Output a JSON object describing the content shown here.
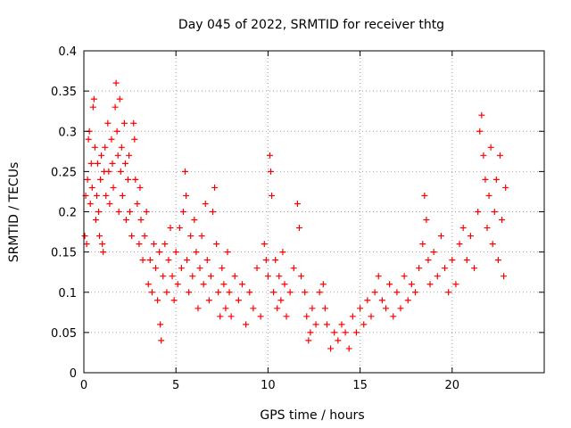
{
  "chart_data": {
    "type": "scatter",
    "title": "Day 045 of 2022, SRMTID for receiver thtg",
    "xlabel": "GPS time / hours",
    "ylabel": "SRMTID / TECUs",
    "xlim": [
      0,
      25
    ],
    "ylim": [
      0,
      0.4
    ],
    "xticks": [
      0,
      5,
      10,
      15,
      20
    ],
    "yticks": [
      0,
      0.05,
      0.1,
      0.15,
      0.2,
      0.25,
      0.3,
      0.35,
      0.4
    ],
    "xtick_labels": [
      "0",
      "5",
      "10",
      "15",
      "20"
    ],
    "ytick_labels": [
      "0",
      "0.05",
      "0.1",
      "0.15",
      "0.2",
      "0.25",
      "0.3",
      "0.35",
      "0.4"
    ],
    "grid": true,
    "marker": "+",
    "colors": {
      "series": "#ff0000",
      "grid": "#a0a0a0",
      "axes": "#000000"
    },
    "series": [
      {
        "points": [
          [
            0.05,
            0.17
          ],
          [
            0.1,
            0.22
          ],
          [
            0.15,
            0.16
          ],
          [
            0.2,
            0.24
          ],
          [
            0.25,
            0.29
          ],
          [
            0.3,
            0.3
          ],
          [
            0.35,
            0.21
          ],
          [
            0.4,
            0.26
          ],
          [
            0.45,
            0.23
          ],
          [
            0.5,
            0.33
          ],
          [
            0.55,
            0.34
          ],
          [
            0.6,
            0.28
          ],
          [
            0.65,
            0.19
          ],
          [
            0.7,
            0.22
          ],
          [
            0.75,
            0.26
          ],
          [
            0.8,
            0.2
          ],
          [
            0.85,
            0.17
          ],
          [
            0.9,
            0.24
          ],
          [
            0.95,
            0.27
          ],
          [
            1.0,
            0.16
          ],
          [
            1.05,
            0.15
          ],
          [
            1.1,
            0.25
          ],
          [
            1.15,
            0.28
          ],
          [
            1.2,
            0.22
          ],
          [
            1.3,
            0.31
          ],
          [
            1.35,
            0.25
          ],
          [
            1.4,
            0.21
          ],
          [
            1.5,
            0.29
          ],
          [
            1.55,
            0.26
          ],
          [
            1.6,
            0.23
          ],
          [
            1.7,
            0.33
          ],
          [
            1.75,
            0.36
          ],
          [
            1.8,
            0.3
          ],
          [
            1.85,
            0.27
          ],
          [
            1.9,
            0.2
          ],
          [
            1.95,
            0.34
          ],
          [
            2.0,
            0.25
          ],
          [
            2.05,
            0.28
          ],
          [
            2.1,
            0.22
          ],
          [
            2.2,
            0.31
          ],
          [
            2.25,
            0.26
          ],
          [
            2.3,
            0.19
          ],
          [
            2.4,
            0.24
          ],
          [
            2.45,
            0.27
          ],
          [
            2.5,
            0.2
          ],
          [
            2.6,
            0.17
          ],
          [
            2.7,
            0.31
          ],
          [
            2.75,
            0.29
          ],
          [
            2.8,
            0.24
          ],
          [
            2.9,
            0.21
          ],
          [
            3.0,
            0.16
          ],
          [
            3.05,
            0.23
          ],
          [
            3.1,
            0.19
          ],
          [
            3.2,
            0.14
          ],
          [
            3.3,
            0.17
          ],
          [
            3.4,
            0.2
          ],
          [
            3.5,
            0.11
          ],
          [
            3.6,
            0.14
          ],
          [
            3.7,
            0.1
          ],
          [
            3.8,
            0.16
          ],
          [
            3.9,
            0.13
          ],
          [
            4.0,
            0.09
          ],
          [
            4.1,
            0.15
          ],
          [
            4.15,
            0.06
          ],
          [
            4.2,
            0.04
          ],
          [
            4.3,
            0.12
          ],
          [
            4.4,
            0.16
          ],
          [
            4.5,
            0.1
          ],
          [
            4.6,
            0.14
          ],
          [
            4.7,
            0.18
          ],
          [
            4.8,
            0.12
          ],
          [
            4.9,
            0.09
          ],
          [
            5.0,
            0.15
          ],
          [
            5.1,
            0.11
          ],
          [
            5.2,
            0.18
          ],
          [
            5.3,
            0.13
          ],
          [
            5.4,
            0.2
          ],
          [
            5.5,
            0.25
          ],
          [
            5.55,
            0.22
          ],
          [
            5.6,
            0.14
          ],
          [
            5.7,
            0.1
          ],
          [
            5.8,
            0.17
          ],
          [
            5.9,
            0.12
          ],
          [
            6.0,
            0.19
          ],
          [
            6.1,
            0.15
          ],
          [
            6.2,
            0.08
          ],
          [
            6.3,
            0.13
          ],
          [
            6.4,
            0.17
          ],
          [
            6.5,
            0.11
          ],
          [
            6.6,
            0.21
          ],
          [
            6.7,
            0.14
          ],
          [
            6.8,
            0.09
          ],
          [
            6.9,
            0.12
          ],
          [
            7.0,
            0.2
          ],
          [
            7.1,
            0.23
          ],
          [
            7.2,
            0.16
          ],
          [
            7.3,
            0.1
          ],
          [
            7.4,
            0.07
          ],
          [
            7.5,
            0.13
          ],
          [
            7.6,
            0.11
          ],
          [
            7.7,
            0.08
          ],
          [
            7.8,
            0.15
          ],
          [
            7.9,
            0.1
          ],
          [
            8.0,
            0.07
          ],
          [
            8.2,
            0.12
          ],
          [
            8.4,
            0.09
          ],
          [
            8.6,
            0.11
          ],
          [
            8.8,
            0.06
          ],
          [
            9.0,
            0.1
          ],
          [
            9.2,
            0.08
          ],
          [
            9.4,
            0.13
          ],
          [
            9.6,
            0.07
          ],
          [
            9.8,
            0.16
          ],
          [
            9.9,
            0.14
          ],
          [
            10.0,
            0.12
          ],
          [
            10.1,
            0.27
          ],
          [
            10.15,
            0.25
          ],
          [
            10.2,
            0.22
          ],
          [
            10.3,
            0.1
          ],
          [
            10.4,
            0.14
          ],
          [
            10.5,
            0.08
          ],
          [
            10.6,
            0.12
          ],
          [
            10.7,
            0.09
          ],
          [
            10.8,
            0.15
          ],
          [
            10.9,
            0.11
          ],
          [
            11.0,
            0.07
          ],
          [
            11.2,
            0.1
          ],
          [
            11.4,
            0.13
          ],
          [
            11.6,
            0.21
          ],
          [
            11.7,
            0.18
          ],
          [
            11.8,
            0.12
          ],
          [
            12.0,
            0.1
          ],
          [
            12.1,
            0.07
          ],
          [
            12.2,
            0.04
          ],
          [
            12.3,
            0.05
          ],
          [
            12.4,
            0.08
          ],
          [
            12.6,
            0.06
          ],
          [
            12.8,
            0.1
          ],
          [
            13.0,
            0.11
          ],
          [
            13.1,
            0.08
          ],
          [
            13.2,
            0.06
          ],
          [
            13.4,
            0.03
          ],
          [
            13.6,
            0.05
          ],
          [
            13.8,
            0.04
          ],
          [
            14.0,
            0.06
          ],
          [
            14.2,
            0.05
          ],
          [
            14.4,
            0.03
          ],
          [
            14.6,
            0.07
          ],
          [
            14.8,
            0.05
          ],
          [
            15.0,
            0.08
          ],
          [
            15.2,
            0.06
          ],
          [
            15.4,
            0.09
          ],
          [
            15.6,
            0.07
          ],
          [
            15.8,
            0.1
          ],
          [
            16.0,
            0.12
          ],
          [
            16.2,
            0.09
          ],
          [
            16.4,
            0.08
          ],
          [
            16.6,
            0.11
          ],
          [
            16.8,
            0.07
          ],
          [
            17.0,
            0.1
          ],
          [
            17.2,
            0.08
          ],
          [
            17.4,
            0.12
          ],
          [
            17.6,
            0.09
          ],
          [
            17.8,
            0.11
          ],
          [
            18.0,
            0.1
          ],
          [
            18.2,
            0.13
          ],
          [
            18.4,
            0.16
          ],
          [
            18.5,
            0.22
          ],
          [
            18.6,
            0.19
          ],
          [
            18.7,
            0.14
          ],
          [
            18.8,
            0.11
          ],
          [
            19.0,
            0.15
          ],
          [
            19.2,
            0.12
          ],
          [
            19.4,
            0.17
          ],
          [
            19.6,
            0.13
          ],
          [
            19.8,
            0.1
          ],
          [
            20.0,
            0.14
          ],
          [
            20.2,
            0.11
          ],
          [
            20.4,
            0.16
          ],
          [
            20.6,
            0.18
          ],
          [
            20.8,
            0.14
          ],
          [
            21.0,
            0.17
          ],
          [
            21.2,
            0.13
          ],
          [
            21.4,
            0.2
          ],
          [
            21.5,
            0.3
          ],
          [
            21.6,
            0.32
          ],
          [
            21.7,
            0.27
          ],
          [
            21.8,
            0.24
          ],
          [
            21.9,
            0.18
          ],
          [
            22.0,
            0.22
          ],
          [
            22.1,
            0.28
          ],
          [
            22.2,
            0.16
          ],
          [
            22.3,
            0.2
          ],
          [
            22.4,
            0.24
          ],
          [
            22.5,
            0.14
          ],
          [
            22.6,
            0.27
          ],
          [
            22.7,
            0.19
          ],
          [
            22.8,
            0.12
          ],
          [
            22.9,
            0.23
          ]
        ]
      }
    ]
  }
}
